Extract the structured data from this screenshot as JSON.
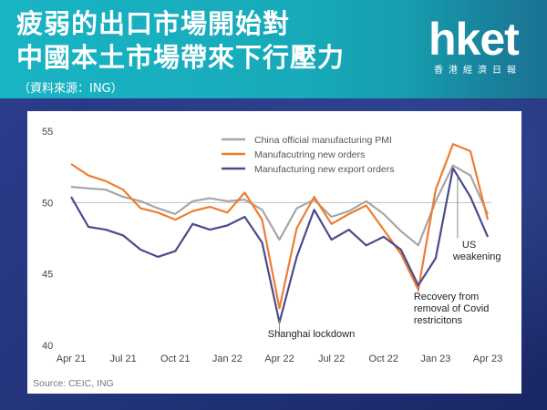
{
  "header": {
    "title_line1": "疲弱的出口市場開始對",
    "title_line2": "中國本土市場帶來下行壓力",
    "source": "（資料來源：ING）"
  },
  "logo": {
    "main": "hket",
    "sub": "香港經濟日報"
  },
  "chart_data": {
    "type": "line",
    "x": [
      "Apr 21",
      "May 21",
      "Jun 21",
      "Jul 21",
      "Aug 21",
      "Sep 21",
      "Oct 21",
      "Nov 21",
      "Dec 21",
      "Jan 22",
      "Feb 22",
      "Mar 22",
      "Apr 22",
      "May 22",
      "Jun 22",
      "Jul 22",
      "Aug 22",
      "Sep 22",
      "Oct 22",
      "Nov 22",
      "Dec 22",
      "Jan 23",
      "Feb 23",
      "Mar 23",
      "Apr 23"
    ],
    "xticks": [
      "Apr 21",
      "Jul 21",
      "Oct 21",
      "Jan 22",
      "Apr 22",
      "Jul 22",
      "Oct 22",
      "Jan 23",
      "Apr 23"
    ],
    "ylim": [
      40,
      55
    ],
    "yticks": [
      40,
      45,
      50,
      55
    ],
    "reference_line": 50,
    "series": [
      {
        "name": "China official manufacturing PMI",
        "color": "#a6a6a6",
        "values": [
          51.1,
          51.0,
          50.9,
          50.4,
          50.1,
          49.6,
          49.2,
          50.1,
          50.3,
          50.1,
          50.2,
          49.5,
          47.4,
          49.6,
          50.2,
          49.0,
          49.4,
          50.1,
          49.2,
          48.0,
          47.0,
          50.1,
          52.6,
          51.9,
          49.2
        ]
      },
      {
        "name": "Manufacutring new orders",
        "color": "#ed7d31",
        "values": [
          52.7,
          51.9,
          51.5,
          50.9,
          49.6,
          49.3,
          48.8,
          49.4,
          49.7,
          49.3,
          50.7,
          48.8,
          42.6,
          48.2,
          50.4,
          48.5,
          49.2,
          49.8,
          48.1,
          46.4,
          43.9,
          50.9,
          54.1,
          53.6,
          48.8
        ]
      },
      {
        "name": "Manufacturing new export orders",
        "color": "#4b4a8e",
        "values": [
          50.4,
          48.3,
          48.1,
          47.7,
          46.7,
          46.2,
          46.6,
          48.5,
          48.1,
          48.4,
          49.0,
          47.2,
          41.6,
          46.2,
          49.5,
          47.4,
          48.1,
          47.0,
          47.6,
          46.7,
          44.2,
          46.1,
          52.4,
          50.4,
          47.6
        ]
      }
    ],
    "annotations": [
      {
        "text": "Shanghai lockdown"
      },
      {
        "lines": [
          "Recovery from",
          "removal of Covid",
          "restricitons"
        ]
      },
      {
        "lines": [
          "US",
          "weakening"
        ]
      }
    ],
    "source": "Source: CEIC, ING",
    "legend_placement": "top"
  }
}
